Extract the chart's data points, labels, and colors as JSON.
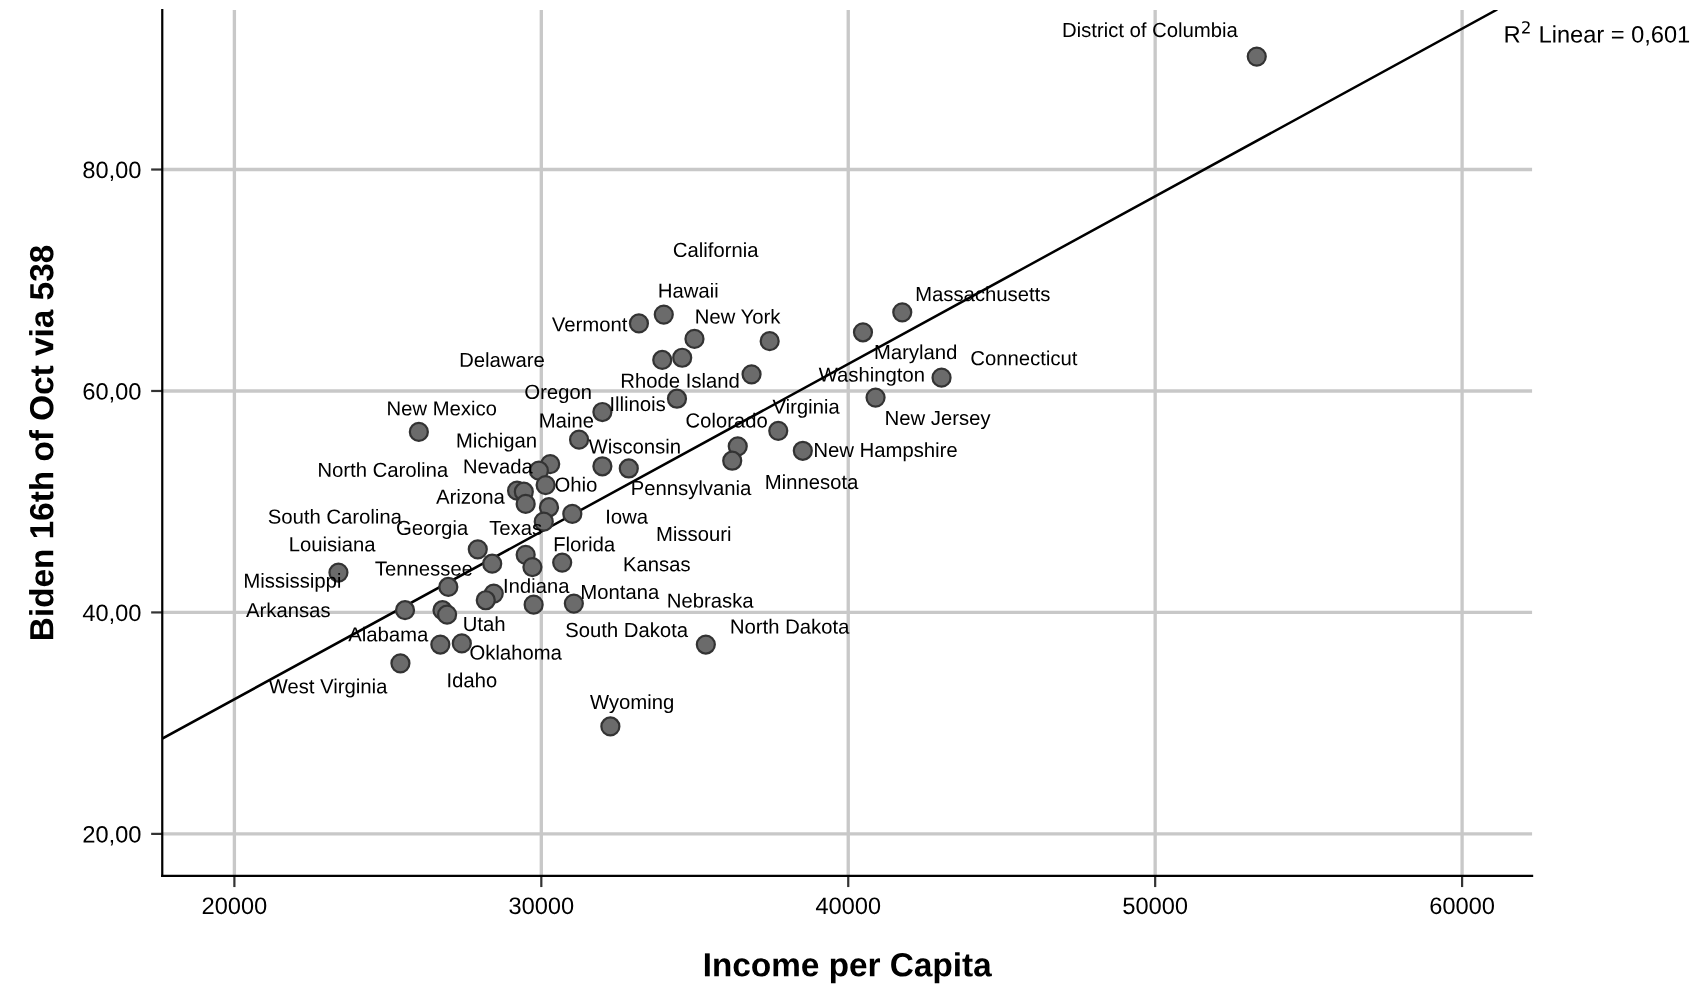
{
  "chart_data": {
    "type": "scatter",
    "xlabel": "Income per Capita",
    "ylabel": "Biden 16th of Oct via 538",
    "xlim": [
      17650,
      62280
    ],
    "ylim": [
      16.2,
      94.4
    ],
    "xticks": [
      20000,
      30000,
      40000,
      50000,
      60000
    ],
    "yticks": [
      {
        "value": 20,
        "label": "20,00"
      },
      {
        "value": 40,
        "label": "40,00"
      },
      {
        "value": 60,
        "label": "60,00"
      },
      {
        "value": 80,
        "label": "80,00"
      }
    ],
    "grid": true,
    "series": [
      {
        "color": "#6b6b6b",
        "marker": "circle",
        "x": [
          26010,
          30290,
          29920,
          29210,
          29430,
          30140,
          29490,
          30250,
          31010,
          30080,
          27930,
          28400,
          29490,
          29710,
          30680,
          23390,
          26970,
          28450,
          28190,
          25560,
          26780,
          26930,
          29750,
          31060,
          26710,
          27410,
          25410,
          33990,
          33180,
          34990,
          33940,
          34590,
          37440,
          36850,
          34420,
          31990,
          31230,
          31990,
          32850,
          36400,
          36220,
          37720,
          38520,
          35360,
          32250,
          40480,
          41760,
          40890,
          43040,
          53310
        ],
        "values": [
          56.3,
          53.4,
          52.8,
          51.0,
          50.9,
          51.5,
          49.8,
          49.5,
          48.9,
          48.2,
          45.7,
          44.4,
          45.2,
          44.1,
          44.5,
          43.6,
          42.3,
          41.7,
          41.1,
          40.2,
          40.2,
          39.8,
          40.7,
          40.8,
          37.1,
          37.2,
          35.4,
          66.9,
          66.1,
          64.7,
          62.8,
          63.0,
          64.5,
          61.5,
          59.3,
          58.1,
          55.6,
          53.2,
          53.0,
          55.0,
          53.7,
          56.4,
          54.6,
          37.1,
          29.7,
          65.3,
          67.1,
          59.4,
          61.2,
          90.2
        ]
      },
      {
        "type": "line",
        "color": "#000000",
        "x": [
          17650,
          61110
        ],
        "values": [
          28.6,
          94.4
        ]
      }
    ],
    "annotations": [
      "R$^{2}$ Linear = 0,601",
      "District of Columbia",
      "California",
      "Hawaii",
      "Vermont",
      "New York",
      "Massachusetts",
      "Delaware",
      "Maryland",
      "Connecticut",
      "Rhode Island",
      "Washington",
      "Oregon",
      "Illinois",
      "Maine",
      "Colorado",
      "Virginia",
      "New Jersey",
      "New Mexico",
      "Michigan",
      "Wisconsin",
      "New Hampshire",
      "Nevada",
      "North Carolina",
      "Ohio",
      "Pennsylvania",
      "Minnesota",
      "Arizona",
      "Iowa",
      "South Carolina",
      "Georgia",
      "Texas",
      "Missouri",
      "Louisiana",
      "Florida",
      "Kansas",
      "Tennessee",
      "Mississippi",
      "Indiana",
      "Montana",
      "Nebraska",
      "Arkansas",
      "Alabama",
      "Utah",
      "South Dakota",
      "North Dakota",
      "Oklahoma",
      "West Virginia",
      "Idaho",
      "Wyoming"
    ]
  }
}
